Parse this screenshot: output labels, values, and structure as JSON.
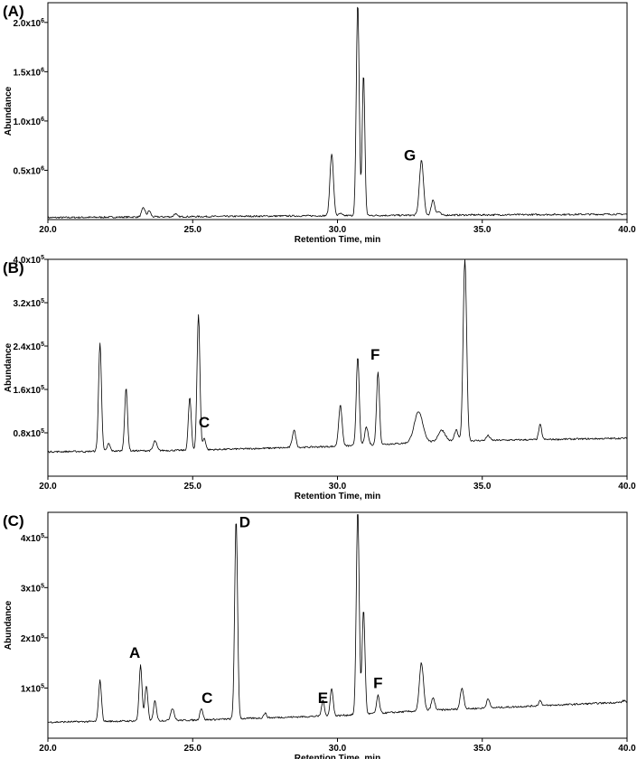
{
  "colors": {
    "line": "#000000",
    "background": "#ffffff"
  },
  "chart_data": [
    {
      "type": "line",
      "panel_label": "(A)",
      "xlabel": "Retention Time, min",
      "ylabel": "Abundance",
      "xlim": [
        20.0,
        40.0
      ],
      "ylim": [
        0,
        2200000
      ],
      "x_ticks": [
        "20.0",
        "25.0",
        "30.0",
        "35.0",
        "40.0"
      ],
      "y_tick_values": [
        500000,
        1000000,
        1500000,
        2000000
      ],
      "y_tick_labels": [
        {
          "mantissa": "0.5x10",
          "exp": "6"
        },
        {
          "mantissa": "1.0x10",
          "exp": "6"
        },
        {
          "mantissa": "1.5x10",
          "exp": "6"
        },
        {
          "mantissa": "2.0x10",
          "exp": "6"
        }
      ],
      "baseline": [
        [
          20.0,
          20000
        ],
        [
          30.0,
          40000
        ],
        [
          40.0,
          55000
        ]
      ],
      "peaks": [
        [
          23.3,
          120000,
          0.06
        ],
        [
          23.5,
          90000,
          0.05
        ],
        [
          24.4,
          60000,
          0.05
        ],
        [
          29.8,
          670000,
          0.06
        ],
        [
          30.1,
          60000,
          0.05
        ],
        [
          30.7,
          2200000,
          0.05
        ],
        [
          30.9,
          1480000,
          0.045
        ],
        [
          32.9,
          600000,
          0.07
        ],
        [
          33.3,
          200000,
          0.06
        ],
        [
          33.5,
          80000,
          0.05
        ]
      ],
      "annotations": [
        {
          "text": "G",
          "x": 32.5,
          "y": 600000
        }
      ]
    },
    {
      "type": "line",
      "panel_label": "(B)",
      "xlabel": "Retention Time, min",
      "ylabel": "Abundance",
      "xlim": [
        20.0,
        40.0
      ],
      "ylim": [
        0,
        400000
      ],
      "x_ticks": [
        "20.0",
        "25.0",
        "30.0",
        "35.0",
        "40.0"
      ],
      "y_tick_values": [
        80000,
        160000,
        240000,
        320000,
        400000
      ],
      "y_tick_labels": [
        {
          "mantissa": "0.8x10",
          "exp": "5"
        },
        {
          "mantissa": "1.6x10",
          "exp": "5"
        },
        {
          "mantissa": "2.4x10",
          "exp": "5"
        },
        {
          "mantissa": "3.2x10",
          "exp": "5"
        },
        {
          "mantissa": "4.0x10",
          "exp": "5"
        }
      ],
      "baseline": [
        [
          20.0,
          45000
        ],
        [
          25.0,
          48000
        ],
        [
          30.0,
          55000
        ],
        [
          34.0,
          65000
        ],
        [
          40.0,
          70000
        ]
      ],
      "peaks": [
        [
          21.3,
          45000,
          0.05
        ],
        [
          21.8,
          245000,
          0.05
        ],
        [
          22.1,
          60000,
          0.05
        ],
        [
          22.7,
          162000,
          0.05
        ],
        [
          23.7,
          65000,
          0.06
        ],
        [
          24.9,
          145000,
          0.05
        ],
        [
          25.2,
          298000,
          0.05
        ],
        [
          25.4,
          70000,
          0.05
        ],
        [
          28.5,
          85000,
          0.06
        ],
        [
          30.1,
          130000,
          0.06
        ],
        [
          30.7,
          222000,
          0.05
        ],
        [
          31.0,
          90000,
          0.06
        ],
        [
          31.4,
          193000,
          0.05
        ],
        [
          32.8,
          118000,
          0.15
        ],
        [
          33.6,
          85000,
          0.12
        ],
        [
          34.1,
          85000,
          0.06
        ],
        [
          34.4,
          400000,
          0.06
        ],
        [
          35.2,
          75000,
          0.06
        ],
        [
          37.0,
          95000,
          0.05
        ]
      ],
      "annotations": [
        {
          "text": "C",
          "x": 25.4,
          "y": 90000
        },
        {
          "text": "F",
          "x": 31.3,
          "y": 215000
        }
      ]
    },
    {
      "type": "line",
      "panel_label": "(C)",
      "xlabel": "Retention Time, min",
      "ylabel": "Abundance",
      "xlim": [
        20.0,
        40.0
      ],
      "ylim": [
        0,
        450000
      ],
      "x_ticks": [
        "20.0",
        "25.0",
        "30.0",
        "35.0",
        "40.0"
      ],
      "y_tick_values": [
        100000,
        200000,
        300000,
        400000
      ],
      "y_tick_labels": [
        {
          "mantissa": "1x10",
          "exp": "5"
        },
        {
          "mantissa": "2x10",
          "exp": "5"
        },
        {
          "mantissa": "3x10",
          "exp": "5"
        },
        {
          "mantissa": "4x10",
          "exp": "5"
        }
      ],
      "baseline": [
        [
          20.0,
          32000
        ],
        [
          25.0,
          36000
        ],
        [
          30.0,
          45000
        ],
        [
          33.0,
          55000
        ],
        [
          40.0,
          72000
        ]
      ],
      "peaks": [
        [
          21.8,
          115000,
          0.05
        ],
        [
          23.2,
          145000,
          0.05
        ],
        [
          23.4,
          105000,
          0.05
        ],
        [
          23.7,
          75000,
          0.05
        ],
        [
          24.3,
          60000,
          0.06
        ],
        [
          25.3,
          60000,
          0.05
        ],
        [
          26.5,
          435000,
          0.05
        ],
        [
          27.5,
          50000,
          0.05
        ],
        [
          29.5,
          75000,
          0.05
        ],
        [
          29.8,
          100000,
          0.05
        ],
        [
          30.7,
          455000,
          0.05
        ],
        [
          30.9,
          255000,
          0.05
        ],
        [
          31.4,
          85000,
          0.05
        ],
        [
          32.9,
          150000,
          0.07
        ],
        [
          33.3,
          80000,
          0.06
        ],
        [
          34.3,
          100000,
          0.06
        ],
        [
          35.2,
          80000,
          0.05
        ],
        [
          37.0,
          75000,
          0.05
        ],
        [
          39.9,
          75000,
          0.05
        ]
      ],
      "annotations": [
        {
          "text": "A",
          "x": 23.0,
          "y": 160000
        },
        {
          "text": "C",
          "x": 25.5,
          "y": 70000
        },
        {
          "text": "D",
          "x": 26.8,
          "y": 420000
        },
        {
          "text": "E",
          "x": 29.5,
          "y": 70000
        },
        {
          "text": "F",
          "x": 31.4,
          "y": 100000
        }
      ]
    }
  ]
}
